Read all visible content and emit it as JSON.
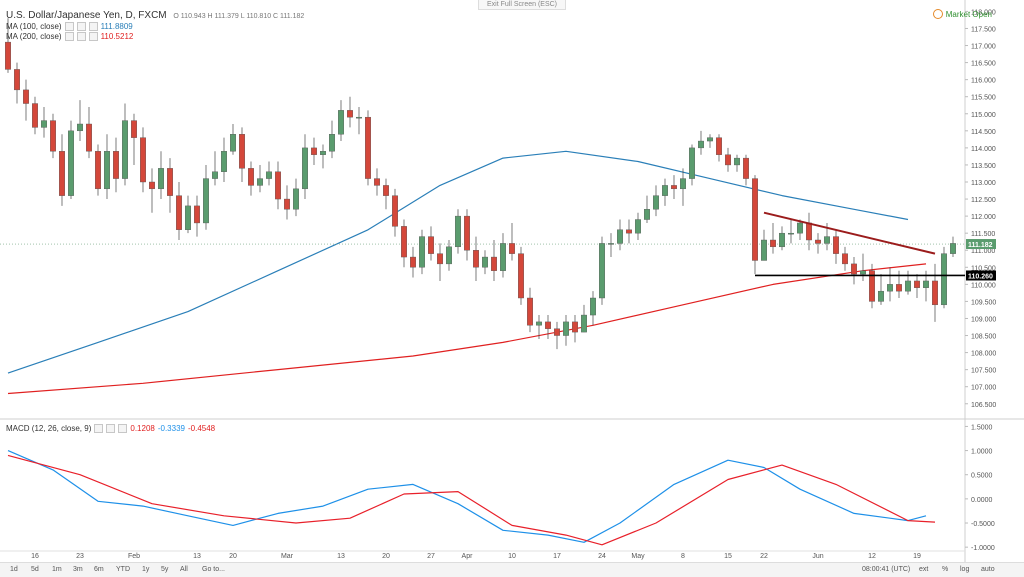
{
  "header": {
    "title": "U.S. Dollar/Japanese Yen, D, FXCM",
    "ohlc": "O 110.943  H 111.379  L 110.810  C 111.182",
    "exit_fullscreen": "Exit Full Screen (ESC)",
    "market_status": "Market Open"
  },
  "indicators": {
    "ma100": {
      "label": "MA (100, close)",
      "value": "111.8809",
      "color": "#2a7fb8"
    },
    "ma200": {
      "label": "MA (200, close)",
      "value": "110.5212",
      "color": "#e02020"
    },
    "macd": {
      "label": "MACD (12, 26, close, 9)",
      "v1": "0.1208",
      "v2": "-0.3339",
      "v3": "-0.4548"
    }
  },
  "colors": {
    "up": "#5a9c6e",
    "down": "#d4473a",
    "ma100": "#2a7fb8",
    "ma200": "#e02020",
    "macd_line": "#1e90e8",
    "signal_line": "#e8202a",
    "trendline": "#9b1c1c",
    "support": "#000000"
  },
  "bottom": {
    "timeframes": [
      "1d",
      "5d",
      "1m",
      "3m",
      "6m",
      "YTD",
      "1y",
      "5y",
      "All",
      "Go to..."
    ],
    "clock": "08:00:41 (UTC)",
    "options": [
      "ext",
      "%",
      "log",
      "auto"
    ]
  },
  "chart_data": [
    {
      "type": "candlestick",
      "title": "U.S. Dollar/Japanese Yen, D, FXCM",
      "ylim": [
        106.2,
        118.1
      ],
      "y_ticks": [
        "118.000",
        "117.500",
        "117.000",
        "116.500",
        "116.000",
        "115.500",
        "115.000",
        "114.500",
        "114.000",
        "113.500",
        "113.000",
        "112.500",
        "112.000",
        "111.500",
        "111.000",
        "110.500",
        "110.000",
        "109.500",
        "109.000",
        "108.500",
        "108.000",
        "107.500",
        "107.000",
        "106.500"
      ],
      "x_ticks": [
        "16",
        "23",
        "Feb",
        "13",
        "20",
        "Mar",
        "13",
        "20",
        "27",
        "Apr",
        "10",
        "17",
        "24",
        "May",
        "8",
        "15",
        "22",
        "Jun",
        "12",
        "19"
      ],
      "x_tick_index": [
        3,
        8,
        14,
        21,
        25,
        31,
        37,
        42,
        47,
        51,
        56,
        61,
        66,
        70,
        75,
        80,
        84,
        90,
        96,
        101
      ],
      "price_labels": {
        "current": "111.182",
        "support": "110.260"
      },
      "candles": [
        [
          117.1,
          116.3,
          117.8,
          116.2
        ],
        [
          116.3,
          115.7,
          116.5,
          115.3
        ],
        [
          115.7,
          115.3,
          116.0,
          114.8
        ],
        [
          115.3,
          114.6,
          115.5,
          114.4
        ],
        [
          114.6,
          114.8,
          115.2,
          114.3
        ],
        [
          114.8,
          113.9,
          115.0,
          113.7
        ],
        [
          113.9,
          112.6,
          114.4,
          112.3
        ],
        [
          112.6,
          114.5,
          114.8,
          112.5
        ],
        [
          114.5,
          114.7,
          115.4,
          114.2
        ],
        [
          114.7,
          113.9,
          115.2,
          113.7
        ],
        [
          113.9,
          112.8,
          114.1,
          112.6
        ],
        [
          112.8,
          113.9,
          114.4,
          112.5
        ],
        [
          113.9,
          113.1,
          114.3,
          112.7
        ],
        [
          113.1,
          114.8,
          115.3,
          112.9
        ],
        [
          114.8,
          114.3,
          115.0,
          113.5
        ],
        [
          114.3,
          113.0,
          114.6,
          112.7
        ],
        [
          113.0,
          112.8,
          113.4,
          112.1
        ],
        [
          112.8,
          113.4,
          113.9,
          112.5
        ],
        [
          113.4,
          112.6,
          113.7,
          112.1
        ],
        [
          112.6,
          111.6,
          113.0,
          111.3
        ],
        [
          111.6,
          112.3,
          112.6,
          111.5
        ],
        [
          112.3,
          111.8,
          112.6,
          111.4
        ],
        [
          111.8,
          113.1,
          113.5,
          111.6
        ],
        [
          113.1,
          113.3,
          113.9,
          112.9
        ],
        [
          113.3,
          113.9,
          114.3,
          113.0
        ],
        [
          113.9,
          114.4,
          114.7,
          113.8
        ],
        [
          114.4,
          113.4,
          114.6,
          113.0
        ],
        [
          113.4,
          112.9,
          113.6,
          112.6
        ],
        [
          112.9,
          113.1,
          113.5,
          112.7
        ],
        [
          113.1,
          113.3,
          113.6,
          112.9
        ],
        [
          113.3,
          112.5,
          113.6,
          112.2
        ],
        [
          112.5,
          112.2,
          112.9,
          111.9
        ],
        [
          112.2,
          112.8,
          113.1,
          112.0
        ],
        [
          112.8,
          114.0,
          114.4,
          112.5
        ],
        [
          114.0,
          113.8,
          114.3,
          113.5
        ],
        [
          113.8,
          113.9,
          114.1,
          113.4
        ],
        [
          113.9,
          114.4,
          114.8,
          113.7
        ],
        [
          114.4,
          115.1,
          115.4,
          114.2
        ],
        [
          115.1,
          114.9,
          115.5,
          114.6
        ],
        [
          114.9,
          114.9,
          115.2,
          114.4
        ],
        [
          114.9,
          113.1,
          115.1,
          112.9
        ],
        [
          113.1,
          112.9,
          113.4,
          112.6
        ],
        [
          112.9,
          112.6,
          113.1,
          112.2
        ],
        [
          112.6,
          111.7,
          112.8,
          111.4
        ],
        [
          111.7,
          110.8,
          111.9,
          110.5
        ],
        [
          110.8,
          110.5,
          111.1,
          110.2
        ],
        [
          110.5,
          111.4,
          111.6,
          110.3
        ],
        [
          111.4,
          110.9,
          111.7,
          110.7
        ],
        [
          110.9,
          110.6,
          111.2,
          110.1
        ],
        [
          110.6,
          111.1,
          111.3,
          110.4
        ],
        [
          111.1,
          112.0,
          112.2,
          110.9
        ],
        [
          112.0,
          111.0,
          112.2,
          110.7
        ],
        [
          111.0,
          110.5,
          111.4,
          110.1
        ],
        [
          110.5,
          110.8,
          111.0,
          110.3
        ],
        [
          110.8,
          110.4,
          111.3,
          110.1
        ],
        [
          110.4,
          111.2,
          111.5,
          110.2
        ],
        [
          111.2,
          110.9,
          111.8,
          110.7
        ],
        [
          110.9,
          109.6,
          111.1,
          109.4
        ],
        [
          109.6,
          108.8,
          109.9,
          108.6
        ],
        [
          108.8,
          108.9,
          109.1,
          108.4
        ],
        [
          108.9,
          108.7,
          109.1,
          108.4
        ],
        [
          108.7,
          108.5,
          108.9,
          108.1
        ],
        [
          108.5,
          108.9,
          109.1,
          108.2
        ],
        [
          108.9,
          108.6,
          109.1,
          108.3
        ],
        [
          108.6,
          109.1,
          109.4,
          108.6
        ],
        [
          109.1,
          109.6,
          109.8,
          108.8
        ],
        [
          109.6,
          111.2,
          111.4,
          109.4
        ],
        [
          111.2,
          111.2,
          111.5,
          110.8
        ],
        [
          111.2,
          111.6,
          111.9,
          111.0
        ],
        [
          111.6,
          111.5,
          111.9,
          111.2
        ],
        [
          111.5,
          111.9,
          112.1,
          111.3
        ],
        [
          111.9,
          112.2,
          112.6,
          111.8
        ],
        [
          112.2,
          112.6,
          112.9,
          112.0
        ],
        [
          112.6,
          112.9,
          113.1,
          112.3
        ],
        [
          112.9,
          112.8,
          113.2,
          112.5
        ],
        [
          112.8,
          113.1,
          113.4,
          112.3
        ],
        [
          113.1,
          114.0,
          114.1,
          112.9
        ],
        [
          114.0,
          114.2,
          114.5,
          113.8
        ],
        [
          114.2,
          114.3,
          114.4,
          114.0
        ],
        [
          114.3,
          113.8,
          114.4,
          113.6
        ],
        [
          113.8,
          113.5,
          114.0,
          113.3
        ],
        [
          113.5,
          113.7,
          113.8,
          113.3
        ],
        [
          113.7,
          113.1,
          113.8,
          112.9
        ],
        [
          113.1,
          110.7,
          113.2,
          110.3
        ],
        [
          110.7,
          111.3,
          111.6,
          110.7
        ],
        [
          111.3,
          111.1,
          111.8,
          110.9
        ],
        [
          111.1,
          111.5,
          111.7,
          111.0
        ],
        [
          111.5,
          111.5,
          111.9,
          111.2
        ],
        [
          111.5,
          111.8,
          111.9,
          111.3
        ],
        [
          111.8,
          111.3,
          112.1,
          111.0
        ],
        [
          111.3,
          111.2,
          111.5,
          110.9
        ],
        [
          111.2,
          111.4,
          111.8,
          111.0
        ],
        [
          111.4,
          110.9,
          111.6,
          110.6
        ],
        [
          110.9,
          110.6,
          111.1,
          110.4
        ],
        [
          110.6,
          110.3,
          110.8,
          110.0
        ],
        [
          110.3,
          110.4,
          110.9,
          110.1
        ],
        [
          110.4,
          109.5,
          110.6,
          109.3
        ],
        [
          109.5,
          109.8,
          110.3,
          109.4
        ],
        [
          109.8,
          110.0,
          110.5,
          109.5
        ],
        [
          110.0,
          109.8,
          110.4,
          109.6
        ],
        [
          109.8,
          110.1,
          110.4,
          109.7
        ],
        [
          110.1,
          109.9,
          110.3,
          109.6
        ],
        [
          109.9,
          110.1,
          110.4,
          109.5
        ],
        [
          110.1,
          109.4,
          110.6,
          108.9
        ],
        [
          109.4,
          110.9,
          111.1,
          109.3
        ],
        [
          110.9,
          111.2,
          111.4,
          110.8
        ]
      ],
      "ma100": [
        [
          0,
          107.4
        ],
        [
          10,
          108.3
        ],
        [
          20,
          109.2
        ],
        [
          30,
          110.4
        ],
        [
          40,
          111.6
        ],
        [
          48,
          112.9
        ],
        [
          55,
          113.7
        ],
        [
          62,
          113.9
        ],
        [
          70,
          113.6
        ],
        [
          78,
          113.1
        ],
        [
          86,
          112.6
        ],
        [
          94,
          112.2
        ],
        [
          100,
          111.9
        ]
      ],
      "ma200": [
        [
          0,
          106.8
        ],
        [
          15,
          107.1
        ],
        [
          30,
          107.5
        ],
        [
          45,
          107.9
        ],
        [
          55,
          108.3
        ],
        [
          65,
          108.8
        ],
        [
          75,
          109.4
        ],
        [
          85,
          110.0
        ],
        [
          95,
          110.4
        ],
        [
          102,
          110.6
        ]
      ],
      "trendline": [
        [
          84,
          112.1
        ],
        [
          103,
          110.9
        ]
      ],
      "support_line": [
        [
          83,
          110.26
        ],
        [
          104,
          110.26
        ]
      ]
    },
    {
      "type": "line",
      "title": "MACD (12, 26, close, 9)",
      "ylim": [
        -1.1,
        1.55
      ],
      "y_ticks": [
        "1.5000",
        "1.0000",
        "0.5000",
        "0.0000",
        "-0.5000",
        "-1.0000"
      ],
      "series": [
        {
          "name": "MACD",
          "values": [
            [
              0,
              1.0
            ],
            [
              5,
              0.6
            ],
            [
              10,
              -0.05
            ],
            [
              15,
              -0.15
            ],
            [
              20,
              -0.35
            ],
            [
              25,
              -0.55
            ],
            [
              30,
              -0.3
            ],
            [
              35,
              -0.15
            ],
            [
              40,
              0.2
            ],
            [
              45,
              0.3
            ],
            [
              50,
              -0.1
            ],
            [
              55,
              -0.65
            ],
            [
              60,
              -0.75
            ],
            [
              64,
              -0.9
            ],
            [
              68,
              -0.5
            ],
            [
              74,
              0.3
            ],
            [
              80,
              0.8
            ],
            [
              84,
              0.65
            ],
            [
              88,
              0.2
            ],
            [
              94,
              -0.3
            ],
            [
              100,
              -0.45
            ],
            [
              102,
              -0.35
            ]
          ]
        },
        {
          "name": "Signal",
          "values": [
            [
              0,
              0.9
            ],
            [
              8,
              0.5
            ],
            [
              16,
              -0.1
            ],
            [
              24,
              -0.35
            ],
            [
              32,
              -0.5
            ],
            [
              38,
              -0.4
            ],
            [
              44,
              0.1
            ],
            [
              50,
              0.15
            ],
            [
              56,
              -0.55
            ],
            [
              62,
              -0.75
            ],
            [
              66,
              -0.95
            ],
            [
              72,
              -0.5
            ],
            [
              80,
              0.4
            ],
            [
              86,
              0.7
            ],
            [
              92,
              0.3
            ],
            [
              100,
              -0.45
            ],
            [
              103,
              -0.48
            ]
          ]
        }
      ]
    }
  ]
}
